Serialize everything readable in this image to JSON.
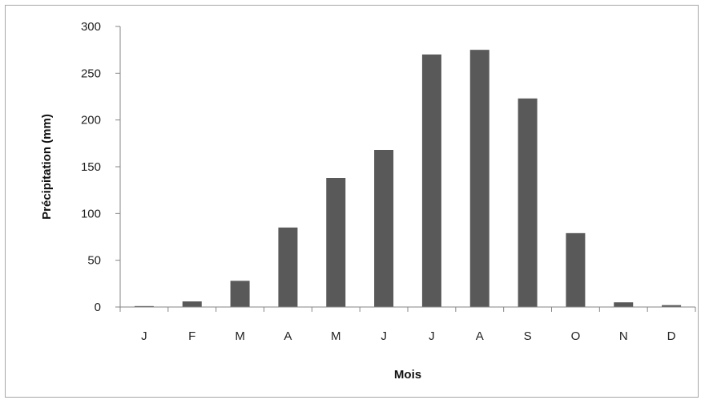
{
  "chart_data": {
    "type": "bar",
    "categories": [
      "J",
      "F",
      "M",
      "A",
      "M",
      "J",
      "J",
      "A",
      "S",
      "O",
      "N",
      "D"
    ],
    "values": [
      1,
      6,
      28,
      85,
      138,
      168,
      270,
      275,
      223,
      79,
      5,
      2
    ],
    "xlabel": "Mois",
    "ylabel": "Précipitation (mm)",
    "ylim": [
      0,
      300
    ],
    "yticks": [
      0,
      50,
      100,
      150,
      200,
      250,
      300
    ],
    "ytick_labels": [
      "0",
      "50",
      "100",
      "150",
      "200",
      "250",
      "300"
    ],
    "grid": false,
    "legend": "none",
    "bar_color": "#595959",
    "axis_color": "#868686"
  }
}
